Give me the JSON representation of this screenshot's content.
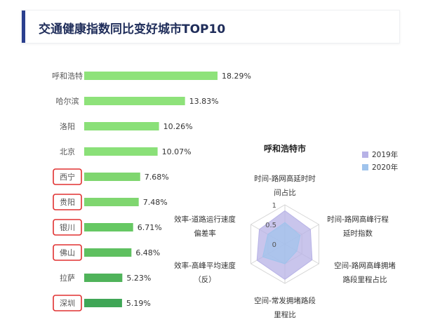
{
  "header": {
    "title": "交通健康指数同比变好城市TOP10"
  },
  "chart_data": [
    {
      "type": "bar",
      "orientation": "horizontal",
      "categories": [
        "呼和浩特",
        "哈尔滨",
        "洛阳",
        "北京",
        "西宁",
        "贵阳",
        "银川",
        "佛山",
        "拉萨",
        "深圳"
      ],
      "values": [
        18.29,
        13.83,
        10.26,
        10.07,
        7.68,
        7.48,
        6.71,
        6.48,
        5.23,
        5.19
      ],
      "value_labels": [
        "18.29%",
        "13.83%",
        "10.26%",
        "10.07%",
        "7.68%",
        "7.48%",
        "6.71%",
        "6.48%",
        "5.23%",
        "5.19%"
      ],
      "highlighted": [
        "西宁",
        "贵阳",
        "银川",
        "佛山",
        "深圳"
      ],
      "bar_colors": [
        "#8ee27a",
        "#8ee27a",
        "#8ae078",
        "#8ae078",
        "#7fd66f",
        "#7fd66f",
        "#66c863",
        "#5fc060",
        "#4fb35a",
        "#3fa656"
      ],
      "highlight_color": "#e03030"
    },
    {
      "type": "radar",
      "title": "呼和浩特市",
      "axes": [
        [
          "时间-路网高延时时",
          "间占比"
        ],
        [
          "时间-路网高峰行程",
          "延时指数"
        ],
        [
          "空间-路网高峰拥堵",
          "路段里程占比"
        ],
        [
          "空间-常发拥堵路段",
          "里程比"
        ],
        [
          "效率-高峰平均速度",
          "（反）"
        ],
        [
          "效率-道路运行速度",
          "偏差率"
        ]
      ],
      "ticks": [
        "0",
        "0.5",
        "1"
      ],
      "series": [
        {
          "name": "2019年",
          "values": [
            0.85,
            0.75,
            0.8,
            0.9,
            0.82,
            0.75
          ],
          "color": "#b7b2e6"
        },
        {
          "name": "2020年",
          "values": [
            0.55,
            0.45,
            0.35,
            0.5,
            0.65,
            0.5
          ],
          "color": "#9fc3ec"
        }
      ]
    }
  ]
}
